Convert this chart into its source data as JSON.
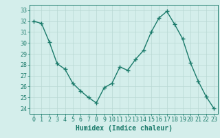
{
  "x": [
    0,
    1,
    2,
    3,
    4,
    5,
    6,
    7,
    8,
    9,
    10,
    11,
    12,
    13,
    14,
    15,
    16,
    17,
    18,
    19,
    20,
    21,
    22,
    23
  ],
  "y": [
    32.0,
    31.8,
    30.1,
    28.1,
    27.6,
    26.3,
    25.6,
    25.0,
    24.5,
    25.9,
    26.3,
    27.8,
    27.5,
    28.5,
    29.3,
    31.0,
    32.3,
    32.9,
    31.7,
    30.4,
    28.2,
    26.5,
    25.1,
    24.0
  ],
  "line_color": "#1a7a6a",
  "marker": "+",
  "marker_size": 4,
  "line_width": 1.0,
  "bg_color": "#d4eeeb",
  "grid_color": "#b8d8d4",
  "xlabel": "Humidex (Indice chaleur)",
  "xlabel_fontsize": 7,
  "tick_fontsize": 6,
  "ylim": [
    23.5,
    33.5
  ],
  "xlim": [
    -0.5,
    23.5
  ],
  "yticks": [
    24,
    25,
    26,
    27,
    28,
    29,
    30,
    31,
    32,
    33
  ],
  "xticks": [
    0,
    1,
    2,
    3,
    4,
    5,
    6,
    7,
    8,
    9,
    10,
    11,
    12,
    13,
    14,
    15,
    16,
    17,
    18,
    19,
    20,
    21,
    22,
    23
  ]
}
